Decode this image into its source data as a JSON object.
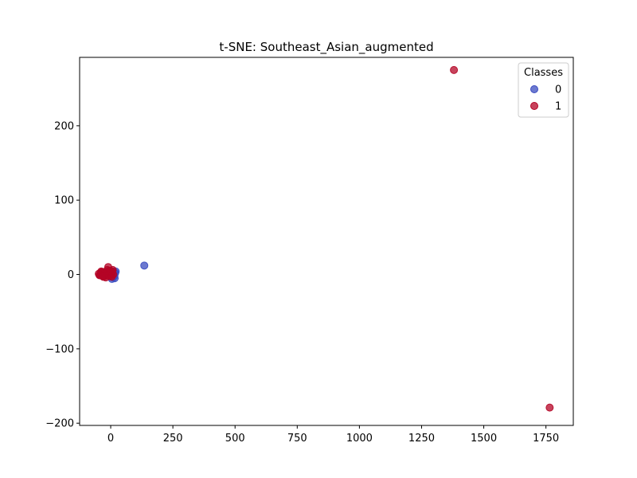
{
  "chart_data": {
    "type": "scatter",
    "title": "t-SNE: Southeast_Asian_augmented",
    "xlabel": "",
    "ylabel": "",
    "xlim": [
      -125,
      1860
    ],
    "ylim": [
      -203,
      292
    ],
    "xticks": [
      0,
      250,
      500,
      750,
      1000,
      1250,
      1500,
      1750
    ],
    "xtick_labels": [
      "0",
      "250",
      "500",
      "750",
      "1000",
      "1250",
      "1500",
      "1750"
    ],
    "yticks": [
      -200,
      -100,
      0,
      100,
      200
    ],
    "ytick_labels": [
      "−200",
      "−100",
      "0",
      "100",
      "200"
    ],
    "grid": false,
    "legend": {
      "title": "Classes",
      "placement": "top-right"
    },
    "series": [
      {
        "name": "0",
        "color": "#3b4cc0",
        "points": [
          [
            135,
            12
          ],
          [
            5,
            -6
          ],
          [
            10,
            -4
          ],
          [
            15,
            -2
          ],
          [
            18,
            2
          ],
          [
            20,
            4
          ],
          [
            12,
            0
          ],
          [
            8,
            -2
          ],
          [
            14,
            3
          ],
          [
            16,
            -5
          ],
          [
            6,
            1
          ],
          [
            -2,
            0
          ],
          [
            -5,
            2
          ],
          [
            0,
            -3
          ],
          [
            3,
            4
          ],
          [
            -10,
            1
          ],
          [
            -15,
            -1
          ],
          [
            -20,
            2
          ],
          [
            -25,
            0
          ],
          [
            -30,
            -2
          ],
          [
            -8,
            3
          ]
        ]
      },
      {
        "name": "1",
        "color": "#b40426",
        "points": [
          [
            1380,
            275
          ],
          [
            1765,
            -179
          ],
          [
            -35,
            0
          ],
          [
            -40,
            2
          ],
          [
            -45,
            -1
          ],
          [
            -38,
            4
          ],
          [
            -30,
            -3
          ],
          [
            -28,
            3
          ],
          [
            -25,
            1
          ],
          [
            -22,
            -2
          ],
          [
            -18,
            0
          ],
          [
            -15,
            2
          ],
          [
            -12,
            -1
          ],
          [
            -10,
            10
          ],
          [
            -8,
            5
          ],
          [
            -6,
            0
          ],
          [
            -5,
            -2
          ],
          [
            -3,
            3
          ],
          [
            0,
            1
          ],
          [
            2,
            -1
          ],
          [
            5,
            2
          ],
          [
            8,
            6
          ],
          [
            10,
            0
          ],
          [
            -42,
            -1
          ],
          [
            -36,
            3
          ],
          [
            -20,
            -4
          ],
          [
            -14,
            6
          ],
          [
            -2,
            5
          ],
          [
            4,
            -3
          ],
          [
            6,
            4
          ],
          [
            -48,
            1
          ],
          [
            -32,
            -2
          ]
        ]
      }
    ]
  }
}
